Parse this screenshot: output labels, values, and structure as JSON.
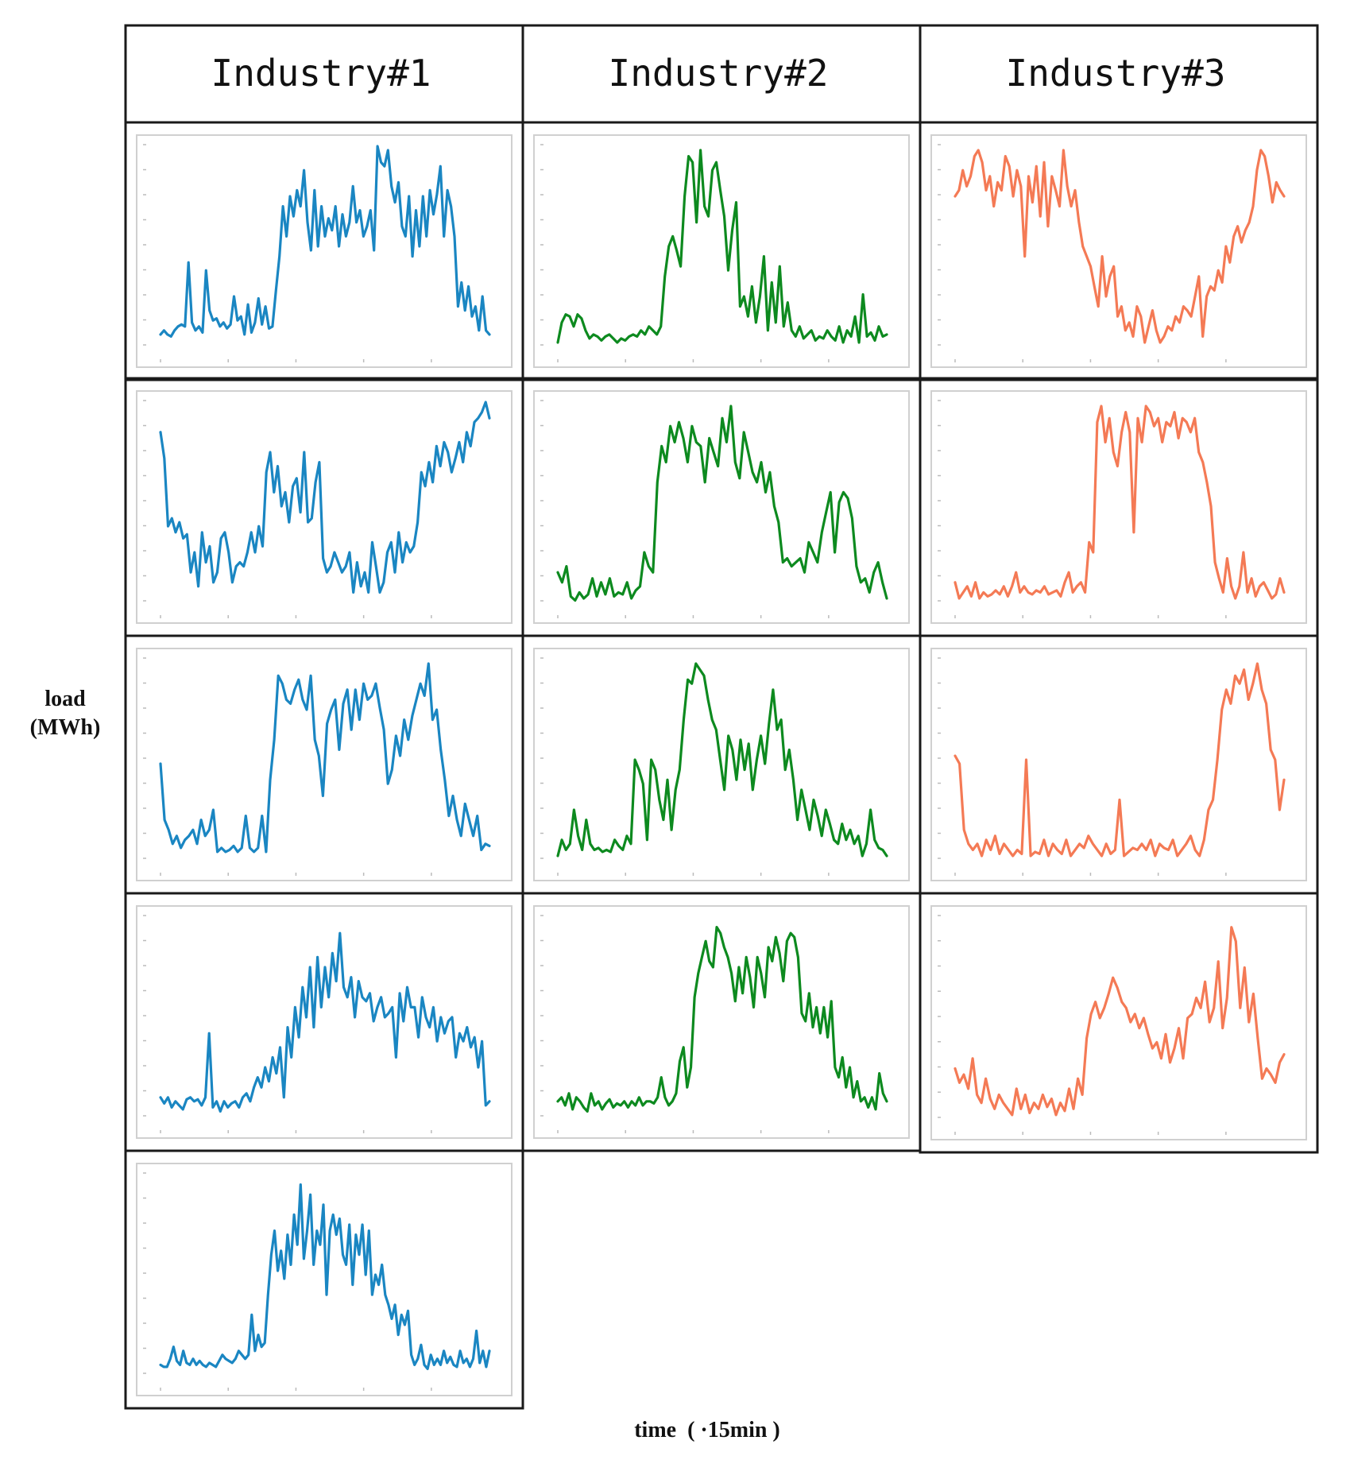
{
  "figure": {
    "columns": [
      "Industry#1",
      "Industry#2",
      "Industry#3"
    ],
    "ylabel_line1": "load",
    "ylabel_line2": "(MWh)",
    "xlabel": "time  ( ·15min )",
    "colors": {
      "Industry#1": "#1a86c2",
      "Industry#2": "#0d8a1f",
      "Industry#3": "#f47a55",
      "frame": "#1a1a1a",
      "plot_border": "#d0d0d0"
    },
    "tick_labels_visible": false
  },
  "chart_data": [
    {
      "type": "line",
      "column": "Industry#1",
      "panel": 1,
      "grid": false,
      "ylim": [
        0,
        1
      ],
      "values": [
        0.06,
        0.08,
        0.06,
        0.05,
        0.08,
        0.1,
        0.11,
        0.1,
        0.42,
        0.12,
        0.08,
        0.1,
        0.07,
        0.38,
        0.18,
        0.13,
        0.14,
        0.1,
        0.12,
        0.09,
        0.11,
        0.25,
        0.13,
        0.15,
        0.06,
        0.21,
        0.07,
        0.12,
        0.24,
        0.11,
        0.2,
        0.09,
        0.1,
        0.28,
        0.45,
        0.7,
        0.55,
        0.75,
        0.65,
        0.78,
        0.7,
        0.88,
        0.62,
        0.48,
        0.78,
        0.5,
        0.7,
        0.55,
        0.64,
        0.58,
        0.7,
        0.5,
        0.66,
        0.55,
        0.62,
        0.8,
        0.62,
        0.68,
        0.55,
        0.6,
        0.68,
        0.48,
        1.0,
        0.92,
        0.9,
        0.98,
        0.8,
        0.72,
        0.82,
        0.6,
        0.55,
        0.75,
        0.45,
        0.68,
        0.5,
        0.75,
        0.55,
        0.78,
        0.66,
        0.76,
        0.9,
        0.55,
        0.78,
        0.7,
        0.55,
        0.2,
        0.32,
        0.18,
        0.3,
        0.15,
        0.2,
        0.08,
        0.25,
        0.08,
        0.06
      ]
    },
    {
      "type": "line",
      "column": "Industry#1",
      "panel": 2,
      "grid": false,
      "ylim": [
        0,
        1
      ],
      "values": [
        0.85,
        0.72,
        0.38,
        0.42,
        0.35,
        0.4,
        0.32,
        0.34,
        0.15,
        0.25,
        0.08,
        0.35,
        0.2,
        0.28,
        0.1,
        0.15,
        0.32,
        0.35,
        0.25,
        0.1,
        0.18,
        0.2,
        0.18,
        0.25,
        0.35,
        0.25,
        0.38,
        0.28,
        0.65,
        0.75,
        0.55,
        0.68,
        0.48,
        0.55,
        0.4,
        0.58,
        0.62,
        0.45,
        0.75,
        0.4,
        0.42,
        0.6,
        0.7,
        0.22,
        0.15,
        0.18,
        0.25,
        0.2,
        0.15,
        0.18,
        0.25,
        0.05,
        0.2,
        0.08,
        0.15,
        0.05,
        0.3,
        0.18,
        0.05,
        0.1,
        0.25,
        0.3,
        0.15,
        0.35,
        0.2,
        0.3,
        0.25,
        0.28,
        0.4,
        0.65,
        0.58,
        0.7,
        0.6,
        0.78,
        0.68,
        0.8,
        0.75,
        0.65,
        0.72,
        0.8,
        0.7,
        0.85,
        0.78,
        0.9,
        0.92,
        0.95,
        1.0,
        0.92
      ]
    },
    {
      "type": "line",
      "column": "Industry#1",
      "panel": 3,
      "grid": false,
      "ylim": [
        0,
        1
      ],
      "values": [
        0.48,
        0.2,
        0.15,
        0.08,
        0.12,
        0.06,
        0.1,
        0.12,
        0.15,
        0.08,
        0.2,
        0.12,
        0.15,
        0.25,
        0.04,
        0.06,
        0.04,
        0.05,
        0.07,
        0.04,
        0.06,
        0.22,
        0.06,
        0.04,
        0.06,
        0.22,
        0.04,
        0.4,
        0.6,
        0.92,
        0.88,
        0.8,
        0.78,
        0.85,
        0.9,
        0.8,
        0.75,
        0.92,
        0.6,
        0.52,
        0.32,
        0.68,
        0.75,
        0.8,
        0.55,
        0.78,
        0.85,
        0.65,
        0.85,
        0.7,
        0.88,
        0.8,
        0.82,
        0.88,
        0.76,
        0.65,
        0.38,
        0.45,
        0.62,
        0.52,
        0.7,
        0.6,
        0.72,
        0.8,
        0.88,
        0.82,
        0.98,
        0.7,
        0.75,
        0.55,
        0.4,
        0.22,
        0.32,
        0.2,
        0.12,
        0.28,
        0.2,
        0.12,
        0.22,
        0.05,
        0.08,
        0.07
      ]
    },
    {
      "type": "line",
      "column": "Industry#1",
      "panel": 4,
      "grid": false,
      "ylim": [
        0,
        1
      ],
      "values": [
        0.1,
        0.07,
        0.1,
        0.05,
        0.08,
        0.06,
        0.04,
        0.09,
        0.1,
        0.08,
        0.09,
        0.06,
        0.1,
        0.42,
        0.05,
        0.08,
        0.03,
        0.08,
        0.05,
        0.07,
        0.08,
        0.05,
        0.1,
        0.12,
        0.08,
        0.15,
        0.2,
        0.15,
        0.25,
        0.18,
        0.3,
        0.22,
        0.35,
        0.1,
        0.45,
        0.3,
        0.55,
        0.4,
        0.65,
        0.5,
        0.75,
        0.45,
        0.8,
        0.55,
        0.75,
        0.6,
        0.82,
        0.68,
        0.92,
        0.65,
        0.6,
        0.7,
        0.5,
        0.68,
        0.6,
        0.58,
        0.62,
        0.48,
        0.55,
        0.6,
        0.5,
        0.52,
        0.55,
        0.3,
        0.62,
        0.48,
        0.65,
        0.55,
        0.55,
        0.4,
        0.6,
        0.5,
        0.45,
        0.55,
        0.38,
        0.5,
        0.42,
        0.48,
        0.5,
        0.3,
        0.42,
        0.38,
        0.45,
        0.35,
        0.4,
        0.25,
        0.38,
        0.06,
        0.08
      ]
    },
    {
      "type": "line",
      "column": "Industry#1",
      "panel": 5,
      "grid": false,
      "ylim": [
        0,
        1
      ],
      "values": [
        0.05,
        0.04,
        0.04,
        0.08,
        0.14,
        0.07,
        0.05,
        0.12,
        0.06,
        0.05,
        0.08,
        0.05,
        0.07,
        0.05,
        0.04,
        0.06,
        0.05,
        0.04,
        0.07,
        0.1,
        0.08,
        0.07,
        0.06,
        0.08,
        0.12,
        0.1,
        0.08,
        0.1,
        0.3,
        0.12,
        0.2,
        0.14,
        0.16,
        0.4,
        0.6,
        0.72,
        0.52,
        0.62,
        0.48,
        0.7,
        0.55,
        0.8,
        0.65,
        0.95,
        0.58,
        0.72,
        0.9,
        0.55,
        0.72,
        0.65,
        0.85,
        0.4,
        0.72,
        0.8,
        0.7,
        0.78,
        0.6,
        0.55,
        0.75,
        0.45,
        0.7,
        0.6,
        0.75,
        0.5,
        0.72,
        0.4,
        0.5,
        0.45,
        0.55,
        0.4,
        0.35,
        0.28,
        0.35,
        0.2,
        0.3,
        0.25,
        0.32,
        0.1,
        0.05,
        0.08,
        0.15,
        0.05,
        0.03,
        0.1,
        0.05,
        0.08,
        0.05,
        0.12,
        0.06,
        0.09,
        0.05,
        0.04,
        0.12,
        0.06,
        0.08,
        0.04,
        0.08,
        0.22,
        0.06,
        0.12,
        0.04,
        0.12
      ]
    },
    {
      "type": "line",
      "column": "Industry#2",
      "panel": 1,
      "grid": false,
      "ylim": [
        0,
        1
      ],
      "values": [
        0.02,
        0.12,
        0.16,
        0.15,
        0.1,
        0.16,
        0.14,
        0.08,
        0.04,
        0.06,
        0.05,
        0.03,
        0.05,
        0.06,
        0.04,
        0.02,
        0.04,
        0.03,
        0.05,
        0.06,
        0.05,
        0.08,
        0.06,
        0.1,
        0.08,
        0.06,
        0.1,
        0.35,
        0.5,
        0.55,
        0.48,
        0.4,
        0.75,
        0.95,
        0.92,
        0.62,
        0.98,
        0.7,
        0.65,
        0.88,
        0.92,
        0.78,
        0.65,
        0.38,
        0.58,
        0.72,
        0.2,
        0.25,
        0.15,
        0.3,
        0.12,
        0.25,
        0.45,
        0.08,
        0.32,
        0.12,
        0.4,
        0.1,
        0.22,
        0.08,
        0.05,
        0.1,
        0.04,
        0.06,
        0.08,
        0.03,
        0.05,
        0.04,
        0.08,
        0.05,
        0.03,
        0.1,
        0.02,
        0.08,
        0.05,
        0.15,
        0.02,
        0.26,
        0.05,
        0.07,
        0.03,
        0.1,
        0.05,
        0.06
      ]
    },
    {
      "type": "line",
      "column": "Industry#2",
      "panel": 2,
      "grid": false,
      "ylim": [
        0,
        1
      ],
      "values": [
        0.15,
        0.1,
        0.18,
        0.03,
        0.01,
        0.05,
        0.02,
        0.04,
        0.12,
        0.03,
        0.1,
        0.04,
        0.12,
        0.03,
        0.05,
        0.04,
        0.1,
        0.02,
        0.06,
        0.08,
        0.25,
        0.18,
        0.15,
        0.6,
        0.78,
        0.7,
        0.88,
        0.8,
        0.9,
        0.82,
        0.7,
        0.88,
        0.8,
        0.78,
        0.6,
        0.82,
        0.75,
        0.68,
        0.92,
        0.8,
        0.98,
        0.7,
        0.62,
        0.85,
        0.75,
        0.65,
        0.6,
        0.7,
        0.55,
        0.65,
        0.48,
        0.4,
        0.2,
        0.22,
        0.18,
        0.2,
        0.22,
        0.15,
        0.3,
        0.25,
        0.2,
        0.35,
        0.45,
        0.55,
        0.25,
        0.5,
        0.55,
        0.52,
        0.42,
        0.18,
        0.1,
        0.12,
        0.05,
        0.15,
        0.2,
        0.1,
        0.02
      ]
    },
    {
      "type": "line",
      "column": "Industry#2",
      "panel": 3,
      "grid": false,
      "ylim": [
        0,
        1
      ],
      "values": [
        0.02,
        0.1,
        0.05,
        0.08,
        0.25,
        0.12,
        0.05,
        0.2,
        0.08,
        0.05,
        0.06,
        0.04,
        0.05,
        0.04,
        0.1,
        0.07,
        0.05,
        0.12,
        0.08,
        0.5,
        0.45,
        0.38,
        0.1,
        0.5,
        0.45,
        0.3,
        0.2,
        0.4,
        0.15,
        0.35,
        0.45,
        0.7,
        0.9,
        0.88,
        0.98,
        0.95,
        0.92,
        0.8,
        0.7,
        0.65,
        0.5,
        0.35,
        0.62,
        0.55,
        0.4,
        0.6,
        0.45,
        0.58,
        0.35,
        0.5,
        0.62,
        0.48,
        0.68,
        0.85,
        0.65,
        0.7,
        0.45,
        0.55,
        0.4,
        0.2,
        0.35,
        0.25,
        0.15,
        0.3,
        0.22,
        0.12,
        0.25,
        0.18,
        0.1,
        0.08,
        0.18,
        0.1,
        0.15,
        0.08,
        0.12,
        0.02,
        0.08,
        0.25,
        0.1,
        0.06,
        0.05,
        0.02
      ]
    },
    {
      "type": "line",
      "column": "Industry#2",
      "panel": 4,
      "grid": false,
      "ylim": [
        0,
        1
      ],
      "values": [
        0.08,
        0.1,
        0.06,
        0.12,
        0.04,
        0.1,
        0.08,
        0.05,
        0.03,
        0.12,
        0.06,
        0.08,
        0.04,
        0.07,
        0.09,
        0.05,
        0.07,
        0.06,
        0.08,
        0.05,
        0.08,
        0.06,
        0.1,
        0.06,
        0.08,
        0.08,
        0.07,
        0.1,
        0.2,
        0.1,
        0.06,
        0.08,
        0.12,
        0.28,
        0.35,
        0.15,
        0.25,
        0.6,
        0.72,
        0.8,
        0.88,
        0.78,
        0.75,
        0.95,
        0.92,
        0.85,
        0.8,
        0.72,
        0.58,
        0.75,
        0.62,
        0.8,
        0.7,
        0.55,
        0.8,
        0.72,
        0.6,
        0.85,
        0.78,
        0.9,
        0.82,
        0.68,
        0.88,
        0.92,
        0.9,
        0.8,
        0.52,
        0.48,
        0.62,
        0.45,
        0.55,
        0.42,
        0.55,
        0.4,
        0.58,
        0.25,
        0.2,
        0.3,
        0.15,
        0.25,
        0.1,
        0.18,
        0.08,
        0.1,
        0.05,
        0.1,
        0.04,
        0.22,
        0.12,
        0.08
      ]
    },
    {
      "type": "line",
      "column": "Industry#3",
      "panel": 1,
      "grid": false,
      "ylim": [
        0,
        1
      ],
      "values": [
        0.75,
        0.78,
        0.88,
        0.8,
        0.85,
        0.95,
        0.98,
        0.92,
        0.78,
        0.85,
        0.7,
        0.82,
        0.78,
        0.95,
        0.9,
        0.75,
        0.88,
        0.8,
        0.45,
        0.85,
        0.72,
        0.9,
        0.65,
        0.92,
        0.6,
        0.85,
        0.78,
        0.7,
        0.98,
        0.8,
        0.7,
        0.78,
        0.62,
        0.5,
        0.45,
        0.4,
        0.3,
        0.2,
        0.45,
        0.25,
        0.35,
        0.4,
        0.15,
        0.2,
        0.08,
        0.12,
        0.05,
        0.2,
        0.15,
        0.02,
        0.1,
        0.18,
        0.08,
        0.02,
        0.05,
        0.1,
        0.08,
        0.15,
        0.12,
        0.2,
        0.18,
        0.15,
        0.25,
        0.35,
        0.05,
        0.25,
        0.3,
        0.28,
        0.38,
        0.32,
        0.5,
        0.42,
        0.55,
        0.6,
        0.52,
        0.58,
        0.62,
        0.7,
        0.88,
        0.98,
        0.95,
        0.85,
        0.72,
        0.82,
        0.78,
        0.75
      ]
    },
    {
      "type": "line",
      "column": "Industry#3",
      "panel": 2,
      "grid": false,
      "ylim": [
        0,
        1
      ],
      "values": [
        0.1,
        0.02,
        0.05,
        0.08,
        0.03,
        0.1,
        0.02,
        0.05,
        0.03,
        0.04,
        0.06,
        0.04,
        0.08,
        0.03,
        0.08,
        0.15,
        0.05,
        0.08,
        0.05,
        0.04,
        0.06,
        0.05,
        0.08,
        0.04,
        0.05,
        0.06,
        0.03,
        0.1,
        0.15,
        0.05,
        0.08,
        0.1,
        0.05,
        0.3,
        0.25,
        0.9,
        0.98,
        0.8,
        0.92,
        0.75,
        0.68,
        0.85,
        0.95,
        0.85,
        0.35,
        0.92,
        0.8,
        0.98,
        0.95,
        0.88,
        0.92,
        0.8,
        0.9,
        0.88,
        0.95,
        0.82,
        0.92,
        0.9,
        0.85,
        0.92,
        0.75,
        0.7,
        0.6,
        0.48,
        0.2,
        0.12,
        0.05,
        0.22,
        0.08,
        0.02,
        0.08,
        0.25,
        0.05,
        0.12,
        0.03,
        0.08,
        0.1,
        0.06,
        0.02,
        0.04,
        0.12,
        0.05
      ]
    },
    {
      "type": "line",
      "column": "Industry#3",
      "panel": 3,
      "grid": false,
      "ylim": [
        0,
        1
      ],
      "values": [
        0.52,
        0.48,
        0.15,
        0.08,
        0.05,
        0.08,
        0.02,
        0.1,
        0.05,
        0.12,
        0.03,
        0.08,
        0.05,
        0.02,
        0.05,
        0.03,
        0.5,
        0.02,
        0.04,
        0.03,
        0.1,
        0.02,
        0.08,
        0.05,
        0.03,
        0.1,
        0.02,
        0.05,
        0.08,
        0.06,
        0.12,
        0.08,
        0.05,
        0.02,
        0.08,
        0.03,
        0.05,
        0.3,
        0.02,
        0.04,
        0.06,
        0.05,
        0.08,
        0.05,
        0.1,
        0.02,
        0.08,
        0.06,
        0.05,
        0.1,
        0.02,
        0.05,
        0.08,
        0.12,
        0.05,
        0.02,
        0.1,
        0.25,
        0.3,
        0.5,
        0.75,
        0.85,
        0.78,
        0.92,
        0.88,
        0.95,
        0.8,
        0.88,
        0.98,
        0.85,
        0.78,
        0.55,
        0.5,
        0.25,
        0.4
      ]
    },
    {
      "type": "line",
      "column": "Industry#3",
      "panel": 4,
      "grid": false,
      "ylim": [
        0,
        1
      ],
      "values": [
        0.25,
        0.18,
        0.22,
        0.15,
        0.3,
        0.12,
        0.08,
        0.2,
        0.1,
        0.05,
        0.12,
        0.08,
        0.05,
        0.02,
        0.15,
        0.05,
        0.12,
        0.03,
        0.08,
        0.05,
        0.12,
        0.06,
        0.1,
        0.02,
        0.08,
        0.04,
        0.15,
        0.05,
        0.2,
        0.12,
        0.4,
        0.52,
        0.58,
        0.5,
        0.55,
        0.62,
        0.7,
        0.65,
        0.58,
        0.55,
        0.48,
        0.52,
        0.45,
        0.5,
        0.42,
        0.35,
        0.38,
        0.3,
        0.42,
        0.28,
        0.35,
        0.45,
        0.3,
        0.5,
        0.52,
        0.6,
        0.55,
        0.68,
        0.48,
        0.55,
        0.78,
        0.45,
        0.6,
        0.95,
        0.88,
        0.55,
        0.75,
        0.48,
        0.62,
        0.4,
        0.2,
        0.25,
        0.22,
        0.18,
        0.28,
        0.32
      ]
    }
  ]
}
